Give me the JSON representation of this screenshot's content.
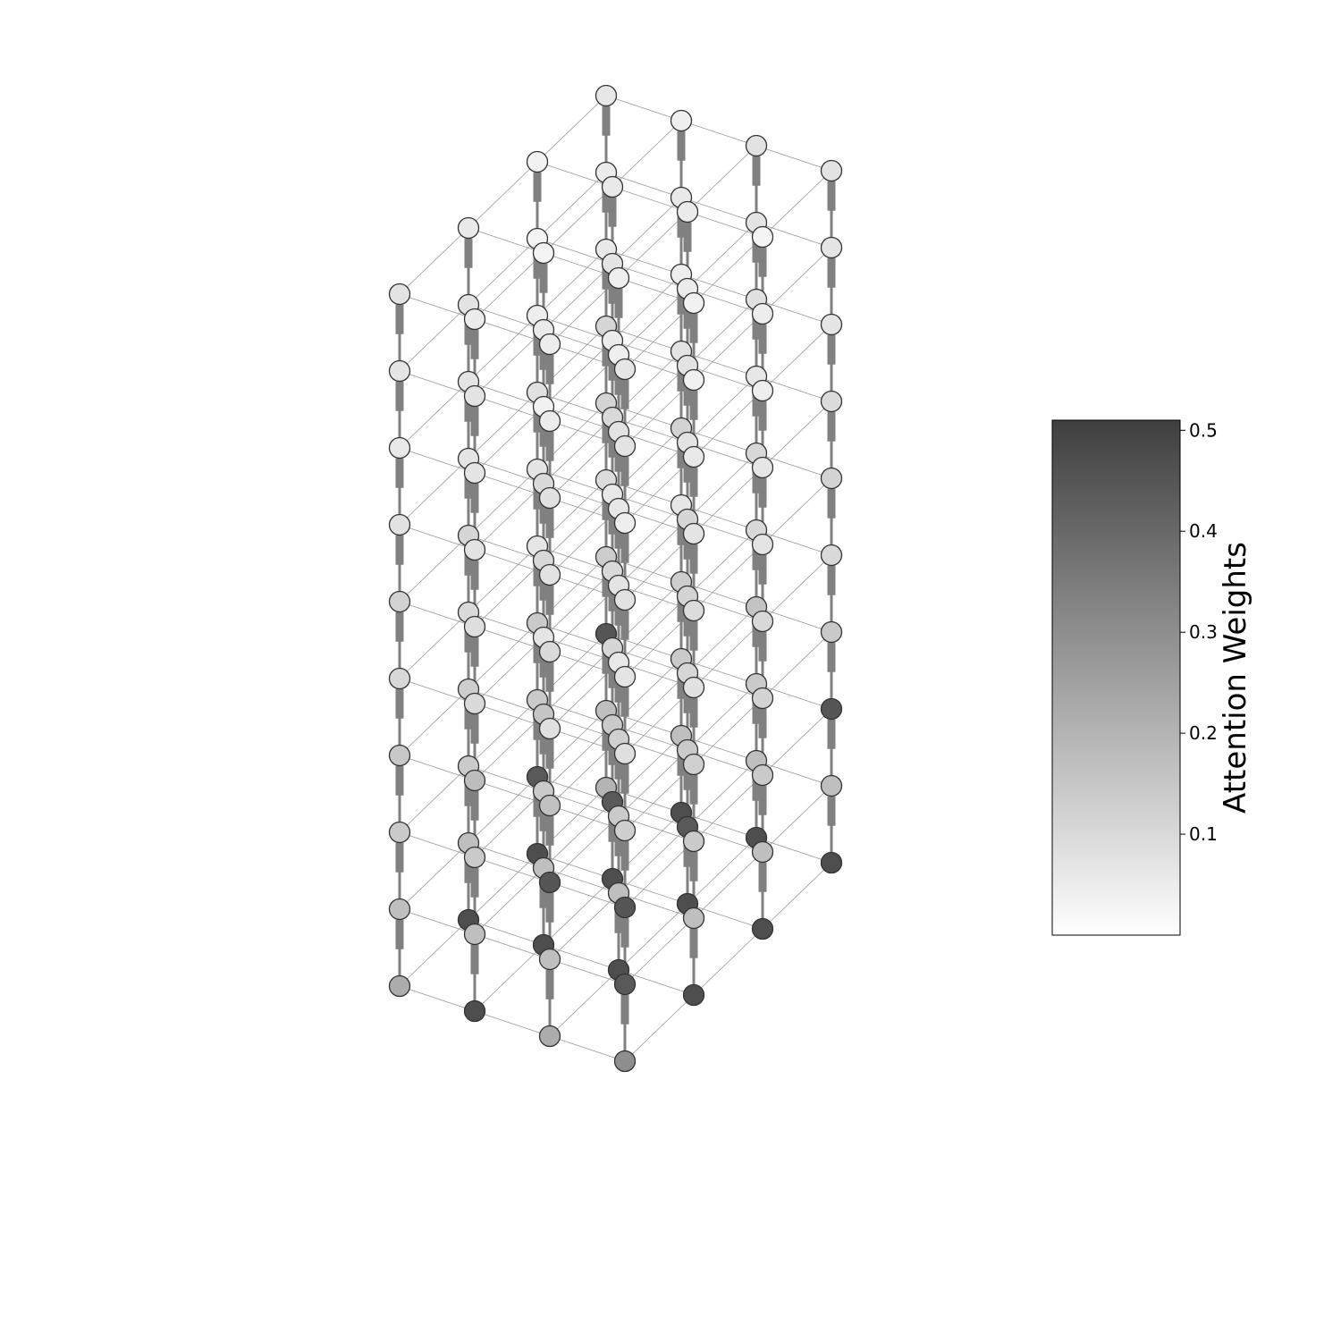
{
  "chart_data": {
    "type": "3d-lattice",
    "lattice": {
      "nx": 4,
      "ny": 4,
      "nz": 10
    },
    "node_style": {
      "edge_color": "#333333",
      "bottom_layer_dark_ratio": 0.9
    },
    "colormap": {
      "name": "greys",
      "low_color": "#ffffff",
      "high_color": "#3f3f3f",
      "vmin": 0.0,
      "vmax": 0.51
    },
    "colorbar": {
      "label": "Attention Weights",
      "ticks": [
        0.1,
        0.2,
        0.3,
        0.4,
        0.5
      ],
      "tick_labels": [
        "0.1",
        "0.2",
        "0.3",
        "0.4",
        "0.5"
      ]
    },
    "layer_weight_profile": {
      "top_layers": 0.03,
      "middle_layers": 0.06,
      "lower_layers": 0.18,
      "bottom_dark": 0.47,
      "bottom_mid": 0.3
    }
  }
}
